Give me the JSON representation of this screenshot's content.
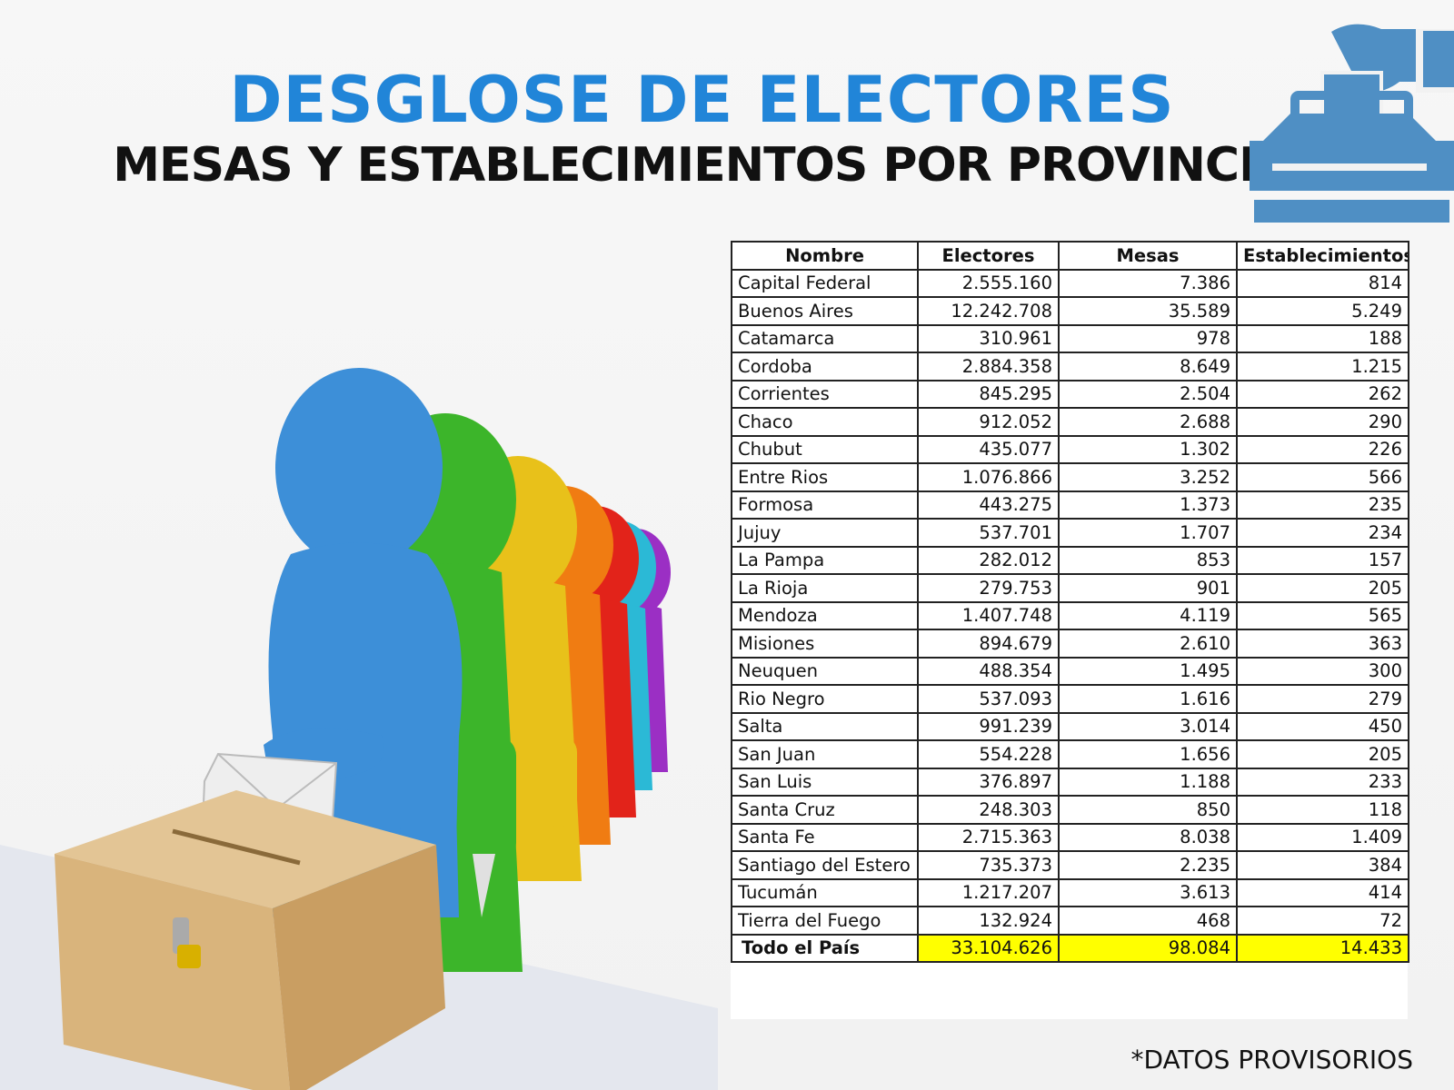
{
  "header": {
    "title": "DESGLOSE DE ELECTORES",
    "subtitle": "MESAS Y ESTABLECIMIENTOS POR PROVINCIA"
  },
  "colors": {
    "accent": "#2185d8",
    "highlight": "#ffff00"
  },
  "icons": {
    "logo": "ballot-box-icon",
    "illustration": "voters-queue-icon"
  },
  "table": {
    "columns": [
      "Nombre",
      "Electores",
      "Mesas",
      "Establecimientos"
    ],
    "rows": [
      {
        "name": "Capital Federal",
        "electores": "2.555.160",
        "mesas": "7.386",
        "establecimientos": "814"
      },
      {
        "name": "Buenos Aires",
        "electores": "12.242.708",
        "mesas": "35.589",
        "establecimientos": "5.249"
      },
      {
        "name": "Catamarca",
        "electores": "310.961",
        "mesas": "978",
        "establecimientos": "188"
      },
      {
        "name": "Cordoba",
        "electores": "2.884.358",
        "mesas": "8.649",
        "establecimientos": "1.215"
      },
      {
        "name": "Corrientes",
        "electores": "845.295",
        "mesas": "2.504",
        "establecimientos": "262"
      },
      {
        "name": "Chaco",
        "electores": "912.052",
        "mesas": "2.688",
        "establecimientos": "290"
      },
      {
        "name": "Chubut",
        "electores": "435.077",
        "mesas": "1.302",
        "establecimientos": "226"
      },
      {
        "name": "Entre Rios",
        "electores": "1.076.866",
        "mesas": "3.252",
        "establecimientos": "566"
      },
      {
        "name": "Formosa",
        "electores": "443.275",
        "mesas": "1.373",
        "establecimientos": "235"
      },
      {
        "name": "Jujuy",
        "electores": "537.701",
        "mesas": "1.707",
        "establecimientos": "234"
      },
      {
        "name": "La Pampa",
        "electores": "282.012",
        "mesas": "853",
        "establecimientos": "157"
      },
      {
        "name": "La Rioja",
        "electores": "279.753",
        "mesas": "901",
        "establecimientos": "205"
      },
      {
        "name": "Mendoza",
        "electores": "1.407.748",
        "mesas": "4.119",
        "establecimientos": "565"
      },
      {
        "name": "Misiones",
        "electores": "894.679",
        "mesas": "2.610",
        "establecimientos": "363"
      },
      {
        "name": "Neuquen",
        "electores": "488.354",
        "mesas": "1.495",
        "establecimientos": "300"
      },
      {
        "name": "Rio Negro",
        "electores": "537.093",
        "mesas": "1.616",
        "establecimientos": "279"
      },
      {
        "name": "Salta",
        "electores": "991.239",
        "mesas": "3.014",
        "establecimientos": "450"
      },
      {
        "name": "San Juan",
        "electores": "554.228",
        "mesas": "1.656",
        "establecimientos": "205"
      },
      {
        "name": "San Luis",
        "electores": "376.897",
        "mesas": "1.188",
        "establecimientos": "233"
      },
      {
        "name": "Santa Cruz",
        "electores": "248.303",
        "mesas": "850",
        "establecimientos": "118"
      },
      {
        "name": "Santa Fe",
        "electores": "2.715.363",
        "mesas": "8.038",
        "establecimientos": "1.409"
      },
      {
        "name": "Santiago del Estero",
        "electores": "735.373",
        "mesas": "2.235",
        "establecimientos": "384"
      },
      {
        "name": "Tucumán",
        "electores": "1.217.207",
        "mesas": "3.613",
        "establecimientos": "414"
      },
      {
        "name": "Tierra del Fuego",
        "electores": "132.924",
        "mesas": "468",
        "establecimientos": "72"
      }
    ],
    "total": {
      "name": "Todo el País",
      "electores": "33.104.626",
      "mesas": "98.084",
      "establecimientos": "14.433"
    }
  },
  "footnote": "*DATOS PROVISORIOS"
}
